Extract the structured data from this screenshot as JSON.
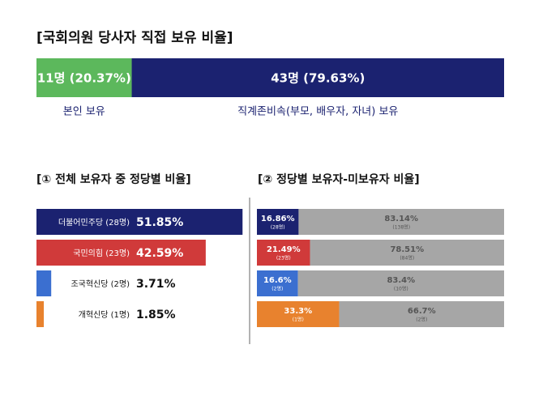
{
  "title": "[국회의원 당사자 직접 보유 비율]",
  "chart_data": [
    {
      "type": "stackedbar",
      "xlim": [
        0,
        100
      ],
      "series": [
        {
          "name": "본인 보유",
          "color": "#5cb85c",
          "label_color": "#ffffff",
          "values": [
            20.37
          ],
          "value_labels": [
            "11명 (20.37%)"
          ]
        },
        {
          "name": "직계존비속(부모, 배우자, 자녀) 보유",
          "color": "#1b2270",
          "label_color": "#ffffff",
          "values": [
            79.63
          ],
          "value_labels": [
            "43명 (79.63%)"
          ]
        }
      ]
    },
    {
      "type": "bar",
      "title": "[① 전체 보유자 중 정당별 비율]",
      "xlim": [
        0,
        52
      ],
      "categories": [
        "더불어민주당 (28명)",
        "국민의힘 (23명)",
        "조국혁신당 (2명)",
        "개혁신당 (1명)"
      ],
      "values": [
        51.85,
        42.59,
        3.71,
        1.85
      ],
      "value_labels": [
        "51.85%",
        "42.59%",
        "3.71%",
        "1.85%"
      ],
      "colors": [
        "#1b2270",
        "#d03a3a",
        "#3b6fd0",
        "#e8822e"
      ]
    },
    {
      "type": "stackedbar",
      "title": "[② 정당별 보유자-미보유자 비율]",
      "xlim": [
        0,
        100
      ],
      "series": [
        {
          "colors": [
            "#1b2270",
            "#d03a3a",
            "#3b6fd0",
            "#e8822e"
          ],
          "label_color": "#ffffff",
          "values": [
            16.86,
            21.49,
            16.6,
            33.3
          ],
          "value_labels": [
            "16.86%",
            "21.49%",
            "16.6%",
            "33.3%"
          ],
          "sublabels": [
            "(28명)",
            "(23명)",
            "(2명)",
            "(1명)"
          ]
        },
        {
          "color": "#a6a6a6",
          "label_color": "#555555",
          "values": [
            83.14,
            78.51,
            83.4,
            66.7
          ],
          "value_labels": [
            "83.14%",
            "78.51%",
            "83.4%",
            "66.7%"
          ],
          "sublabels": [
            "(138명)",
            "(84명)",
            "(10명)",
            "(2명)"
          ]
        }
      ]
    }
  ]
}
